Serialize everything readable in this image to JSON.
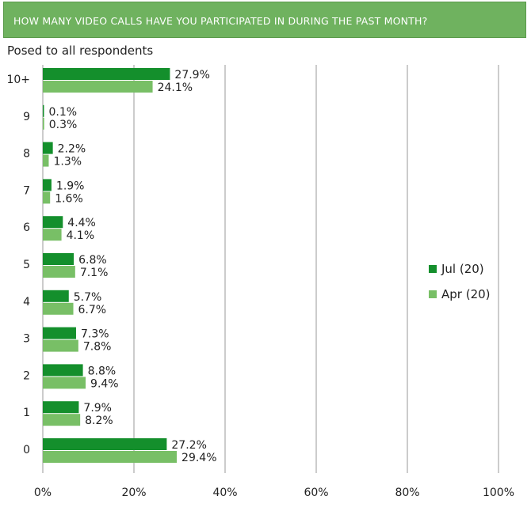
{
  "header": {
    "title": "HOW MANY VIDEO CALLS HAVE YOU PARTICIPATED IN DURING THE PAST MONTH?"
  },
  "subtitle": "Posed to all respondents",
  "colors": {
    "header_bg": "#6fb25f",
    "jul": "#148f2c",
    "apr": "#78bf66",
    "grid": "#999999"
  },
  "chart_data": {
    "type": "bar",
    "orientation": "horizontal",
    "title": "HOW MANY VIDEO CALLS HAVE YOU PARTICIPATED IN DURING THE PAST MONTH?",
    "subtitle": "Posed to all respondents",
    "categories": [
      "10+",
      "9",
      "8",
      "7",
      "6",
      "5",
      "4",
      "3",
      "2",
      "1",
      "0"
    ],
    "series": [
      {
        "name": "Jul (20)",
        "values": [
          27.9,
          0.1,
          2.2,
          1.9,
          4.4,
          6.8,
          5.7,
          7.3,
          8.8,
          7.9,
          27.2
        ],
        "labels": [
          "27.9%",
          "0.1%",
          "2.2%",
          "1.9%",
          "4.4%",
          "6.8%",
          "5.7%",
          "7.3%",
          "8.8%",
          "7.9%",
          "27.2%"
        ]
      },
      {
        "name": "Apr (20)",
        "values": [
          24.1,
          0.3,
          1.3,
          1.6,
          4.1,
          7.1,
          6.7,
          7.8,
          9.4,
          8.2,
          29.4
        ],
        "labels": [
          "24.1%",
          "0.3%",
          "1.3%",
          "1.6%",
          "4.1%",
          "7.1%",
          "6.7%",
          "7.8%",
          "9.4%",
          "8.2%",
          "29.4%"
        ]
      }
    ],
    "x_ticks": [
      "0%",
      "20%",
      "40%",
      "60%",
      "80%",
      "100%"
    ],
    "xlim": [
      0,
      100
    ],
    "grid": true,
    "legend": "right"
  }
}
